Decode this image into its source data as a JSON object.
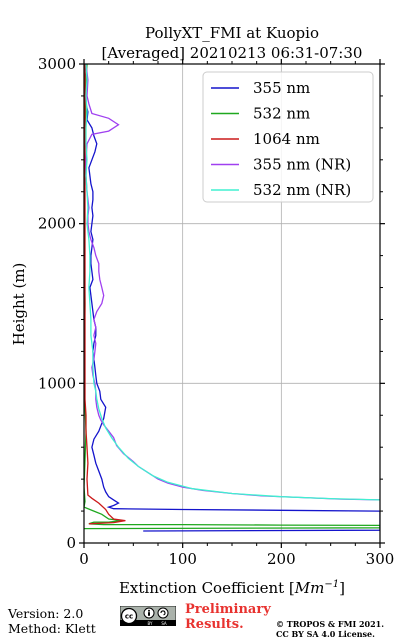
{
  "chart_data": {
    "type": "line",
    "title": "PollyXT_FMI at Kuopio",
    "subtitle": "[Averaged] 20210213 06:31-07:30",
    "xlabel": "Extinction Coefficient [",
    "xlabel_unit_base": "Mm",
    "xlabel_unit_exp": "−1",
    "xlabel_end": "]",
    "ylabel": "Height (m)",
    "xlim": [
      0,
      300
    ],
    "ylim": [
      0,
      3000
    ],
    "xticks": [
      "0",
      "100",
      "200",
      "300"
    ],
    "yticks": [
      "0",
      "1000",
      "2000",
      "3000"
    ],
    "grid": true,
    "legend_position": "top-right",
    "series": [
      {
        "name": "355 nm",
        "color": "#1414cc",
        "points": [
          [
            60,
            75
          ],
          [
            300,
            80
          ],
          [
            300,
            200
          ],
          [
            200,
            205
          ],
          [
            100,
            210
          ],
          [
            30,
            215
          ],
          [
            25,
            225
          ],
          [
            30,
            235
          ],
          [
            35,
            250
          ],
          [
            30,
            270
          ],
          [
            25,
            290
          ],
          [
            22,
            320
          ],
          [
            20,
            350
          ],
          [
            18,
            400
          ],
          [
            15,
            450
          ],
          [
            12,
            500
          ],
          [
            10,
            550
          ],
          [
            8,
            600
          ],
          [
            10,
            650
          ],
          [
            15,
            700
          ],
          [
            20,
            780
          ],
          [
            22,
            850
          ],
          [
            17,
            900
          ],
          [
            16,
            950
          ],
          [
            13,
            1000
          ],
          [
            12,
            1050
          ],
          [
            11,
            1100
          ],
          [
            10,
            1150
          ],
          [
            9,
            1200
          ],
          [
            10,
            1250
          ],
          [
            12,
            1300
          ],
          [
            12,
            1350
          ],
          [
            10,
            1400
          ],
          [
            9,
            1450
          ],
          [
            8,
            1500
          ],
          [
            7,
            1550
          ],
          [
            6,
            1600
          ],
          [
            9,
            1650
          ],
          [
            8,
            1700
          ],
          [
            7,
            1750
          ],
          [
            7,
            1800
          ],
          [
            8,
            1850
          ],
          [
            9,
            1900
          ],
          [
            7,
            1950
          ],
          [
            8,
            2000
          ],
          [
            9,
            2050
          ],
          [
            8,
            2100
          ],
          [
            9,
            2150
          ],
          [
            9,
            2200
          ],
          [
            7,
            2250
          ],
          [
            6,
            2300
          ],
          [
            5,
            2350
          ],
          [
            8,
            2400
          ],
          [
            11,
            2450
          ],
          [
            13,
            2500
          ],
          [
            10,
            2550
          ],
          [
            8,
            2600
          ],
          [
            3,
            2650
          ],
          [
            4,
            2700
          ],
          [
            2,
            2750
          ],
          [
            2,
            2800
          ],
          [
            1,
            2850
          ],
          [
            2,
            2900
          ],
          [
            1,
            2950
          ],
          [
            2,
            3000
          ]
        ]
      },
      {
        "name": "532 nm",
        "color": "#1fa81f",
        "points": [
          [
            0,
            90
          ],
          [
            300,
            95
          ],
          [
            300,
            110
          ],
          [
            200,
            112
          ],
          [
            100,
            115
          ],
          [
            20,
            115
          ],
          [
            5,
            120
          ],
          [
            10,
            130
          ],
          [
            25,
            130
          ],
          [
            38,
            140
          ],
          [
            25,
            150
          ],
          [
            18,
            180
          ],
          [
            10,
            200
          ],
          [
            0,
            225
          ],
          [
            1,
            260
          ],
          [
            0,
            350
          ],
          [
            2,
            700
          ],
          [
            0,
            1000
          ],
          [
            1,
            1500
          ],
          [
            0,
            2000
          ],
          [
            1,
            2500
          ],
          [
            2,
            2700
          ],
          [
            1,
            2800
          ],
          [
            2,
            2900
          ],
          [
            3,
            3000
          ]
        ]
      },
      {
        "name": "1064 nm",
        "color": "#cc1a1a",
        "points": [
          [
            5,
            120
          ],
          [
            30,
            128
          ],
          [
            42,
            140
          ],
          [
            30,
            150
          ],
          [
            25,
            180
          ],
          [
            22,
            210
          ],
          [
            15,
            250
          ],
          [
            8,
            280
          ],
          [
            4,
            300
          ],
          [
            3,
            400
          ],
          [
            4,
            500
          ],
          [
            3,
            600
          ],
          [
            2,
            700
          ],
          [
            2,
            800
          ],
          [
            1,
            900
          ],
          [
            1,
            1000
          ],
          [
            1,
            1500
          ],
          [
            1,
            2000
          ],
          [
            1,
            2500
          ],
          [
            1,
            3000
          ]
        ]
      },
      {
        "name": "355 nm (NR)",
        "color": "#a040f0",
        "points": [
          [
            300,
            270
          ],
          [
            260,
            275
          ],
          [
            220,
            285
          ],
          [
            180,
            295
          ],
          [
            150,
            310
          ],
          [
            120,
            330
          ],
          [
            100,
            350
          ],
          [
            85,
            375
          ],
          [
            75,
            400
          ],
          [
            65,
            440
          ],
          [
            55,
            480
          ],
          [
            50,
            510
          ],
          [
            40,
            560
          ],
          [
            33,
            610
          ],
          [
            30,
            660
          ],
          [
            25,
            700
          ],
          [
            20,
            740
          ],
          [
            17,
            770
          ],
          [
            15,
            800
          ],
          [
            13,
            850
          ],
          [
            12,
            900
          ],
          [
            12,
            950
          ],
          [
            11,
            1000
          ],
          [
            9,
            1050
          ],
          [
            8,
            1100
          ],
          [
            10,
            1150
          ],
          [
            11,
            1200
          ],
          [
            12,
            1250
          ],
          [
            10,
            1300
          ],
          [
            12,
            1350
          ],
          [
            10,
            1400
          ],
          [
            13,
            1450
          ],
          [
            18,
            1500
          ],
          [
            20,
            1550
          ],
          [
            18,
            1600
          ],
          [
            16,
            1650
          ],
          [
            15,
            1700
          ],
          [
            15,
            1750
          ],
          [
            12,
            1800
          ],
          [
            10,
            1850
          ],
          [
            7,
            1900
          ],
          [
            5,
            1950
          ],
          [
            4,
            2000
          ],
          [
            4,
            2050
          ],
          [
            5,
            2100
          ],
          [
            3,
            2200
          ],
          [
            2,
            2300
          ],
          [
            2,
            2400
          ],
          [
            3,
            2500
          ],
          [
            8,
            2560
          ],
          [
            25,
            2580
          ],
          [
            35,
            2620
          ],
          [
            25,
            2660
          ],
          [
            8,
            2690
          ],
          [
            5,
            2750
          ],
          [
            3,
            2800
          ],
          [
            4,
            2900
          ],
          [
            2,
            3000
          ]
        ]
      },
      {
        "name": "532 nm (NR)",
        "color": "#40f0d0",
        "points": [
          [
            300,
            270
          ],
          [
            250,
            278
          ],
          [
            200,
            290
          ],
          [
            150,
            310
          ],
          [
            110,
            340
          ],
          [
            85,
            380
          ],
          [
            70,
            420
          ],
          [
            55,
            480
          ],
          [
            45,
            530
          ],
          [
            35,
            600
          ],
          [
            28,
            660
          ],
          [
            22,
            720
          ],
          [
            18,
            780
          ],
          [
            15,
            840
          ],
          [
            13,
            900
          ],
          [
            12,
            950
          ],
          [
            10,
            1000
          ],
          [
            9,
            1100
          ],
          [
            9,
            1200
          ],
          [
            7,
            1300
          ],
          [
            7,
            1400
          ],
          [
            6,
            1500
          ],
          [
            5,
            1600
          ],
          [
            6,
            1700
          ],
          [
            6,
            1800
          ],
          [
            5,
            1900
          ],
          [
            3,
            2000
          ],
          [
            4,
            2100
          ],
          [
            3,
            2200
          ],
          [
            2,
            2300
          ],
          [
            3,
            2400
          ],
          [
            2,
            2500
          ],
          [
            2,
            2600
          ],
          [
            3,
            2700
          ],
          [
            2,
            2800
          ],
          [
            3,
            2900
          ],
          [
            2,
            3000
          ]
        ]
      }
    ]
  },
  "footer": {
    "version": "Version: 2.0",
    "method": "Method: Klett",
    "license_badge": "cc-by-sa-badge",
    "preliminary_line1": "Preliminary",
    "preliminary_line2": "Results.",
    "copyright_line1": "© TROPOS & FMI 2021.",
    "copyright_line2": "CC BY SA 4.0 License."
  }
}
